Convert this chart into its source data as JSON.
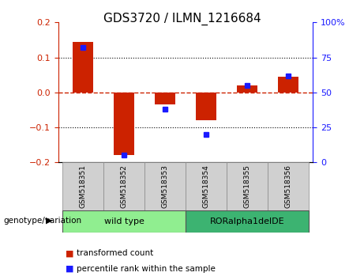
{
  "title": "GDS3720 / ILMN_1216684",
  "samples": [
    "GSM518351",
    "GSM518352",
    "GSM518353",
    "GSM518354",
    "GSM518355",
    "GSM518356"
  ],
  "red_values": [
    0.145,
    -0.18,
    -0.035,
    -0.08,
    0.02,
    0.045
  ],
  "blue_percentiles": [
    82,
    5,
    38,
    20,
    55,
    62
  ],
  "ylim_left": [
    -0.2,
    0.2
  ],
  "ylim_right": [
    0,
    100
  ],
  "yticks_left": [
    -0.2,
    -0.1,
    0.0,
    0.1,
    0.2
  ],
  "yticks_right": [
    0,
    25,
    50,
    75,
    100
  ],
  "group1": {
    "label": "wild type",
    "color": "#90ee90"
  },
  "group2": {
    "label": "RORalpha1delDE",
    "color": "#3cb371"
  },
  "genotype_label": "genotype/variation",
  "legend_red": "transformed count",
  "legend_blue": "percentile rank within the sample",
  "bar_width": 0.5,
  "red_color": "#cc2200",
  "blue_color": "#1a1aff",
  "zero_line_color": "#cc2200",
  "dotted_line_color": "#000000",
  "background_color": "#ffffff",
  "plot_bg": "#ffffff",
  "title_fontsize": 11,
  "tick_fontsize": 8,
  "label_fontsize": 8
}
